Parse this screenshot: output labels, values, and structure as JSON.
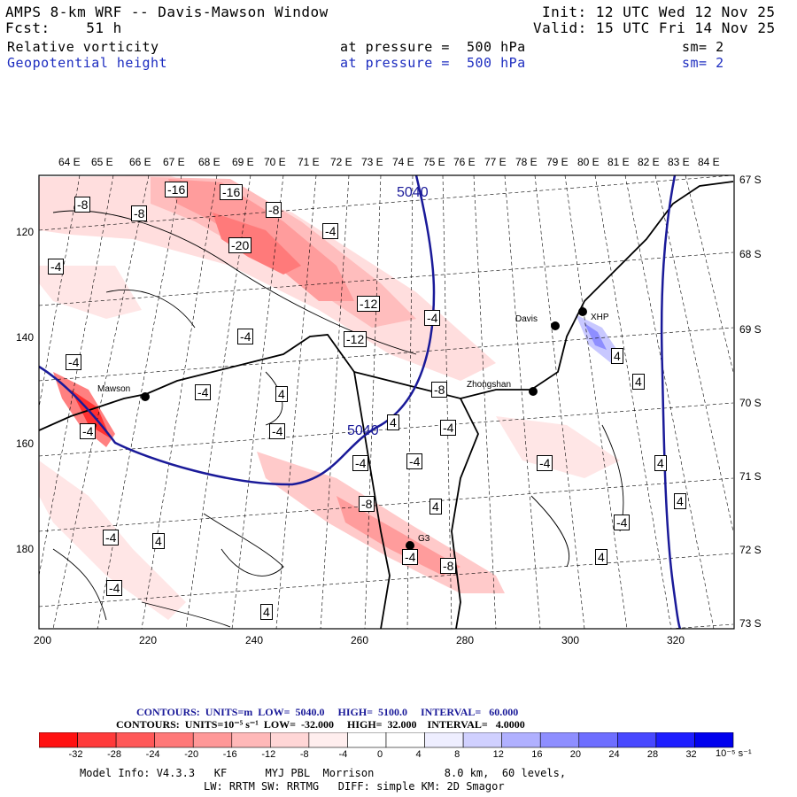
{
  "header": {
    "title": "AMPS 8-km WRF -- Davis-Mawson Window",
    "fcst": "Fcst:    51 h",
    "init": "Init: 12 UTC Wed 12 Nov 25",
    "valid": "Valid: 15 UTC Fri 14 Nov 25",
    "field1": "Relative vorticity",
    "field1_level": "at pressure =  500 hPa",
    "field1_sm": "sm= 2",
    "field2": "Geopotential height",
    "field2_level": "at pressure =  500 hPa",
    "field2_sm": "sm= 2"
  },
  "axes": {
    "lon_labels": [
      "64 E",
      "65 E",
      "66 E",
      "67 E",
      "68 E",
      "69 E",
      "70 E",
      "71 E",
      "72 E",
      "73 E",
      "74 E",
      "75 E",
      "76 E",
      "77 E",
      "78 E",
      "79 E",
      "80 E",
      "81 E",
      "82 E",
      "83 E",
      "84 E"
    ],
    "lat_labels": [
      "67 S",
      "68 S",
      "69 S",
      "70 S",
      "71 S",
      "72 S",
      "73 S"
    ],
    "y_ticks": [
      "120",
      "140",
      "160",
      "180"
    ],
    "x_ticks": [
      "200",
      "220",
      "240",
      "260",
      "280",
      "300",
      "320"
    ]
  },
  "stations": [
    "Mawson",
    "Davis",
    "Zhongshan",
    "XHP",
    "G3"
  ],
  "height_contour_labels": [
    "5040",
    "5040"
  ],
  "vorticity_labels": [
    "-16",
    "-16",
    "-8",
    "-8",
    "-8",
    "-20",
    "-4",
    "-4",
    "-12",
    "-12",
    "-4",
    "-4",
    "-4",
    "-4",
    "-8",
    "-4",
    "4",
    "-4",
    "-4",
    "4",
    "-4",
    "-4",
    "-4",
    "-8",
    "4",
    "-4",
    "-4",
    "4",
    "-4",
    "4",
    "-8",
    "4",
    "4",
    "-4",
    "4",
    "4",
    "4",
    "-4"
  ],
  "info": {
    "contours1": "CONTOURS:  UNITS=m  LOW=  5040.0     HIGH=  5100.0     INTERVAL=   60.000",
    "contours2": "CONTOURS:  UNITS=10⁻⁵ s⁻¹  LOW=  -32.000     HIGH=  32.000    INTERVAL=   4.0000"
  },
  "colorbar": {
    "colors": [
      "#ff1111",
      "#ff3a3a",
      "#ff5858",
      "#ff7878",
      "#ff9898",
      "#ffb8b8",
      "#ffd6d6",
      "#ffeeee",
      "#ffffff",
      "#ffffff",
      "#eeeeff",
      "#d0d0ff",
      "#b0b0ff",
      "#8e8eff",
      "#6e6eff",
      "#4848ff",
      "#1e1eff",
      "#0000ee"
    ],
    "labels": [
      "-32",
      "-28",
      "-24",
      "-20",
      "-16",
      "-12",
      "-8",
      "-4",
      "0",
      "4",
      "8",
      "12",
      "16",
      "20",
      "24",
      "28",
      "32"
    ],
    "units": "10⁻⁵ s⁻¹"
  },
  "footer": {
    "line1": "Model Info: V4.3.3   KF      MYJ PBL  Morrison           8.0 km,  60 levels,",
    "line2": "LW: RRTM SW: RRTMG   DIFF: simple KM: 2D Smagor"
  }
}
